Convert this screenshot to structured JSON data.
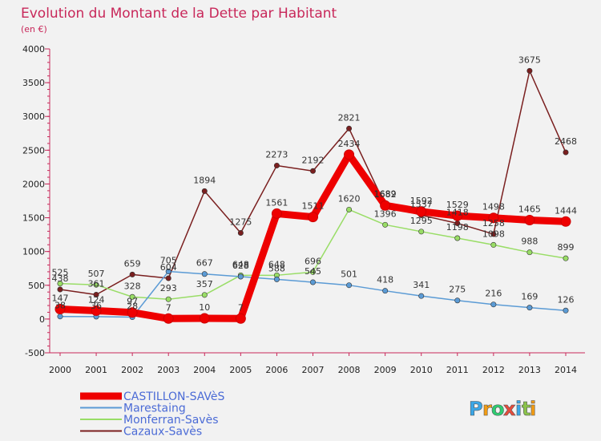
{
  "chart_data": {
    "type": "line",
    "title": "Evolution du Montant de la Dette par Habitant",
    "subtitle": "(en €)",
    "x": [
      "2000",
      "2001",
      "2002",
      "2003",
      "2004",
      "2005",
      "2006",
      "2007",
      "2008",
      "2009",
      "2010",
      "2011",
      "2012",
      "2013",
      "2014"
    ],
    "ylim": [
      -500,
      4000
    ],
    "yticks": [
      -500,
      0,
      500,
      1000,
      1500,
      2000,
      2500,
      3000,
      3500,
      4000
    ],
    "grid": false,
    "legend_position": "bottom-left",
    "series": [
      {
        "name": "CASTILLON-SAVèS",
        "color": "#ee0000",
        "values": [
          147,
          124,
          97,
          7,
          10,
          7,
          1561,
          1511,
          2434,
          1682,
          1592,
          1529,
          1498,
          1465,
          1444
        ],
        "labels": [
          "147",
          "124",
          "97",
          "7",
          "10",
          "7",
          "1561",
          "1511",
          "2434",
          "1682",
          "1592",
          "1529",
          "1498",
          "1465",
          "1444"
        ]
      },
      {
        "name": "Marestaing",
        "color": "#5b9bd5",
        "values": [
          38,
          36,
          28,
          705,
          667,
          628,
          588,
          545,
          501,
          418,
          341,
          275,
          216,
          169,
          126
        ],
        "labels": [
          "",
          "",
          "28",
          "705",
          "667",
          "628",
          "588",
          "545",
          "501",
          "418",
          "341",
          "275",
          "216",
          "169",
          "126"
        ]
      },
      {
        "name": "Monferran-Savès",
        "color": "#99dd66",
        "values": [
          525,
          507,
          328,
          293,
          357,
          648,
          648,
          696,
          1620,
          1396,
          1295,
          1198,
          1098,
          988,
          899
        ],
        "labels": [
          "525",
          "",
          "328",
          "293",
          "357",
          "648",
          "648",
          "696",
          "1620",
          "1396",
          "1295",
          "1198",
          "1098",
          "988",
          "899"
        ]
      },
      {
        "name": "Cazaux-Savès",
        "color": "#7a1f1f",
        "values": [
          438,
          361,
          659,
          604,
          1894,
          1275,
          2273,
          2192,
          2821,
          1689,
          1537,
          1418,
          1258,
          3675,
          2468
        ],
        "labels": [
          "438",
          "361",
          "659",
          "",
          "1894",
          "1275",
          "2273",
          "2192",
          "2821",
          "1689",
          "1537",
          "1418",
          "1258",
          "3675",
          "2468"
        ]
      }
    ],
    "extra_labels": [
      {
        "series": 1,
        "index": 0,
        "text": "38"
      },
      {
        "series": 1,
        "index": 1,
        "text": "36"
      },
      {
        "series": 2,
        "index": 1,
        "text": "507"
      },
      {
        "series": 3,
        "index": 3,
        "text": "604"
      }
    ]
  },
  "logo": {
    "text": "Proxiti",
    "letters": [
      {
        "ch": "P",
        "color": "#3aa7e8"
      },
      {
        "ch": "r",
        "color": "#f39c12"
      },
      {
        "ch": "o",
        "color": "#2ecc71"
      },
      {
        "ch": "x",
        "color": "#e74c3c"
      },
      {
        "ch": "i",
        "color": "#3aa7e8"
      },
      {
        "ch": "t",
        "color": "#8bc34a"
      },
      {
        "ch": "i",
        "color": "#f39c12"
      }
    ]
  }
}
